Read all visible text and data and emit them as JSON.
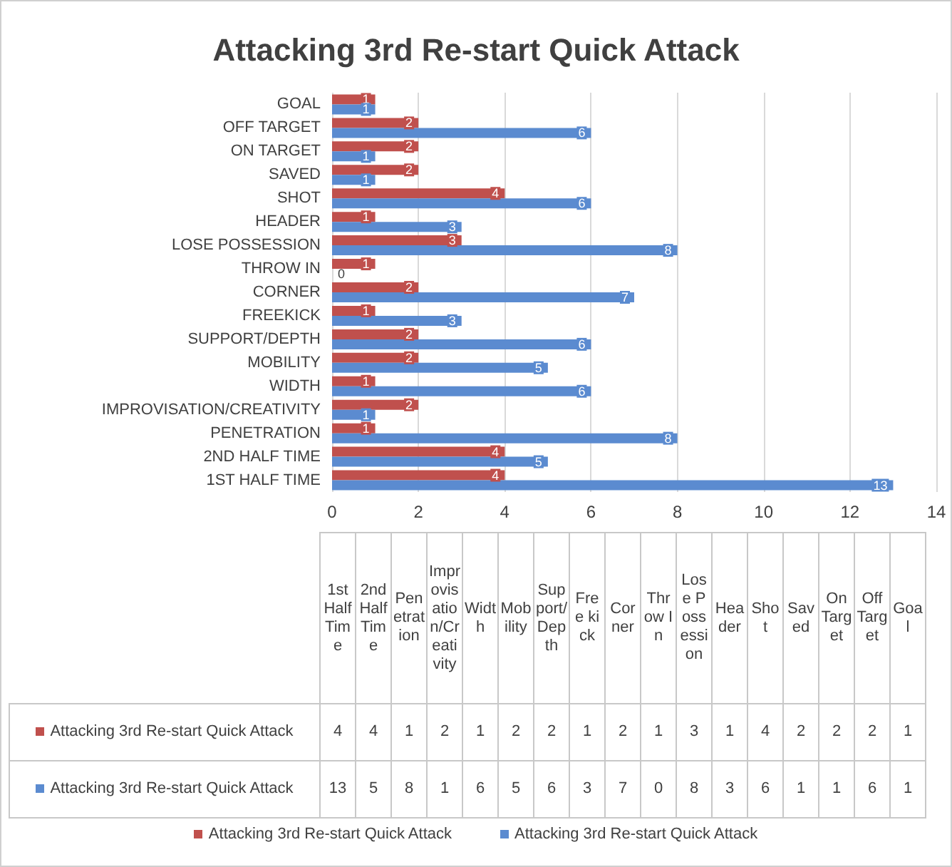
{
  "chart_data": {
    "type": "bar",
    "orientation": "horizontal",
    "title": "Attacking 3rd Re-start Quick Attack",
    "categories": [
      "GOAL",
      "OFF TARGET",
      "ON TARGET",
      "SAVED",
      "SHOT",
      "HEADER",
      "LOSE POSSESSION",
      "THROW IN",
      "CORNER",
      "FREEKICK",
      "SUPPORT/DEPTH",
      "MOBILITY",
      "WIDTH",
      "IMPROVISATION/CREATIVITY",
      "PENETRATION",
      "2ND HALF TIME",
      "1ST HALF TIME"
    ],
    "series": [
      {
        "name": "Attacking 3rd Re-start Quick Attack",
        "color": "#c0504d",
        "values": [
          1,
          2,
          2,
          2,
          4,
          1,
          3,
          1,
          2,
          1,
          2,
          2,
          1,
          2,
          1,
          4,
          4
        ],
        "value_labels": [
          "1",
          "2",
          "2",
          "2",
          "4",
          "1",
          "3",
          "1",
          "2",
          "1",
          "2",
          "2",
          "1",
          "2",
          "1",
          "4",
          "4"
        ]
      },
      {
        "name": "Attacking 3rd Re-start Quick Attack",
        "color": "#5b8bd0",
        "values": [
          1,
          6,
          1,
          1,
          6,
          3,
          8,
          0,
          7,
          3,
          6,
          5,
          6,
          1,
          8,
          5,
          13
        ],
        "value_labels": [
          "1",
          "6",
          "1",
          "1",
          "6",
          "3",
          "8",
          "0",
          "7",
          "3",
          "6",
          "5",
          "6",
          "1",
          "8",
          "5",
          "13"
        ]
      }
    ],
    "xlim": [
      0,
      14
    ],
    "xticks": [
      0,
      2,
      4,
      6,
      8,
      10,
      12,
      14
    ],
    "grid": "x",
    "legend": "bottom",
    "annotations": [
      "Goal",
      "Off Target",
      "On Target",
      "Saved",
      "Shot",
      "Header",
      "Lose Possession",
      "Throw In",
      "Corner",
      "Free kick",
      "Support/Depth",
      "Mobility",
      "Width",
      "Improvisation/Creativity",
      "Penetration",
      "2nd Half Time",
      "1st Half Time"
    ]
  }
}
